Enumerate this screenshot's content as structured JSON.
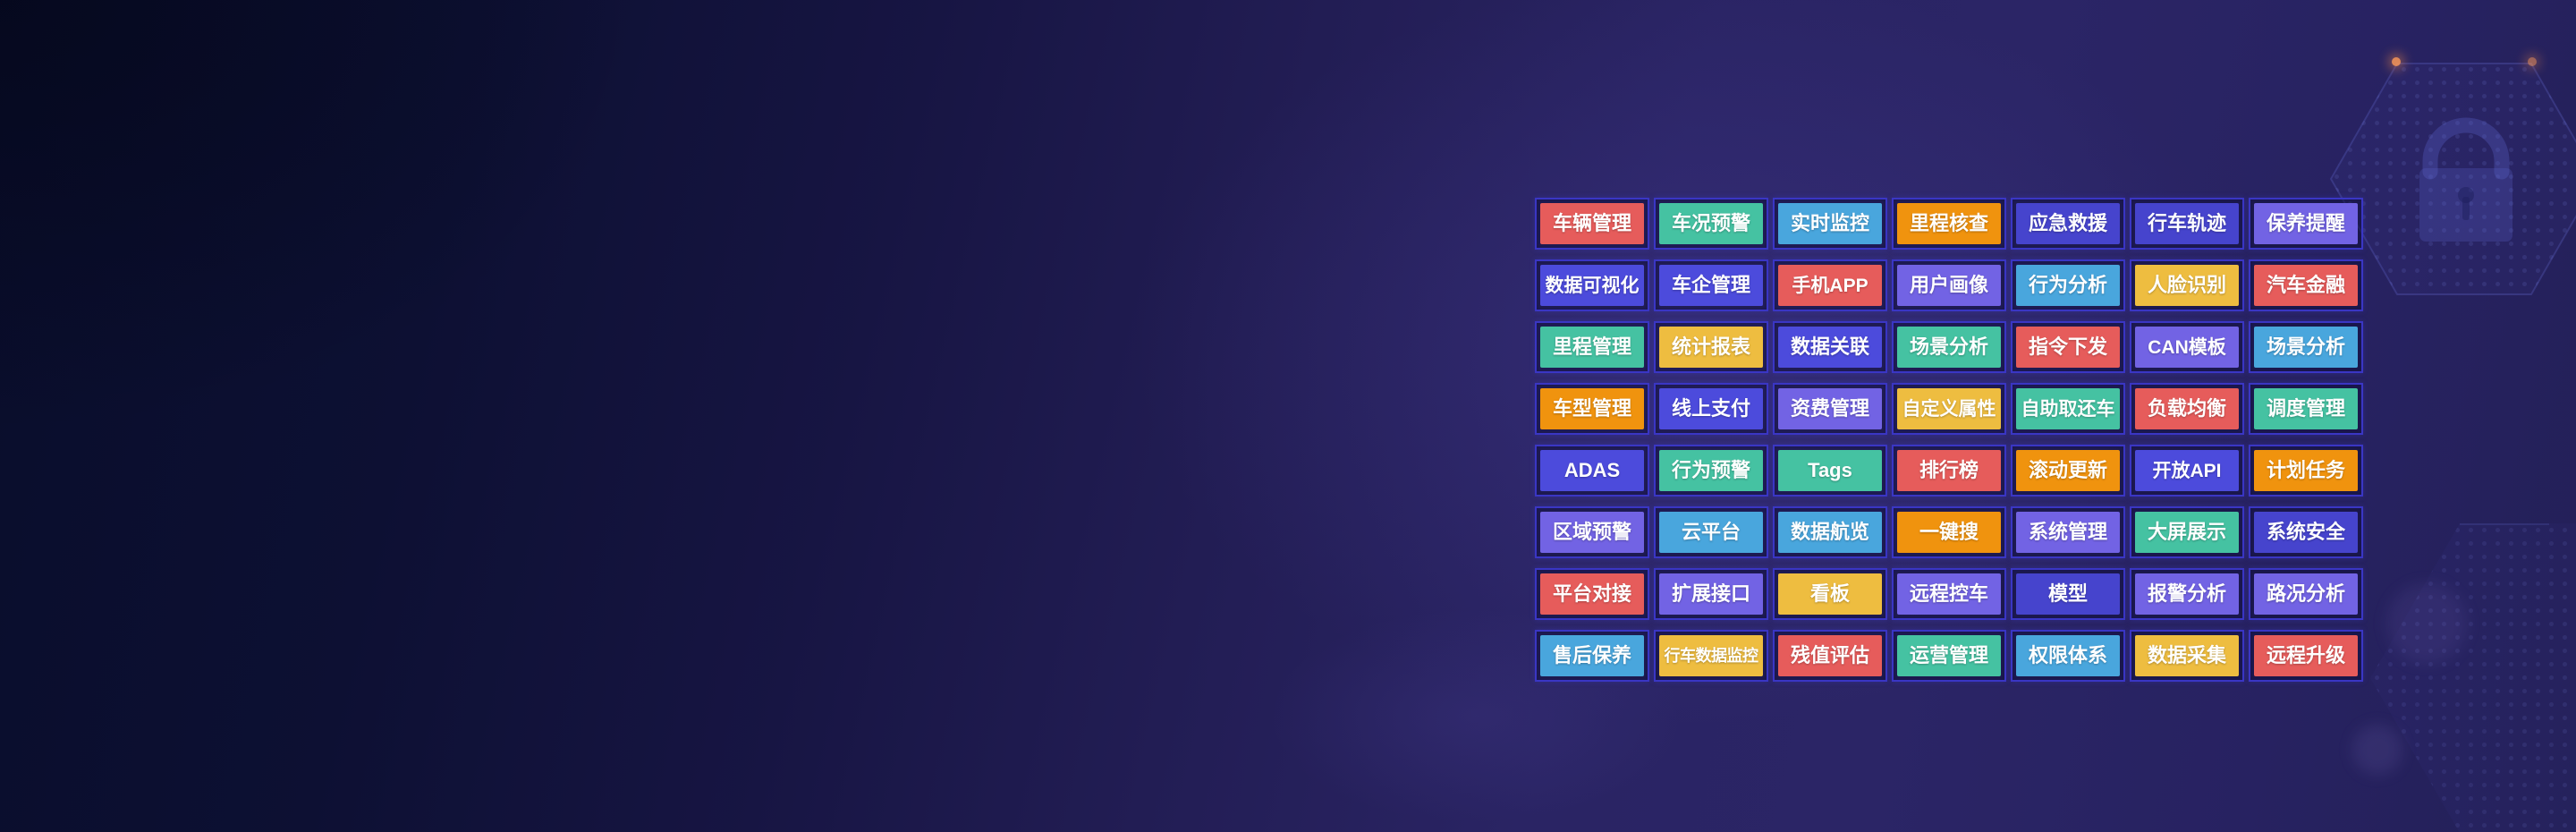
{
  "palette": {
    "red": "#e65c5b",
    "green": "#45c2a2",
    "blue": "#49a6dd",
    "orange": "#f0930e",
    "yellow": "#eebd40",
    "royal": "#4c4bdc",
    "indigo": "#4644cd",
    "purple": "#7263e4",
    "cell_border": "#3a36c4",
    "background_dark": "#090d2b",
    "background_purple": "#2b2566",
    "glow_dot": "#ff9a57"
  },
  "decor": {
    "icons": [
      "lock-icon",
      "hexagon-pattern",
      "hexagon-pattern"
    ]
  },
  "grid": {
    "rows": [
      [
        {
          "label": "车辆管理",
          "color": "red"
        },
        {
          "label": "车况预警",
          "color": "green"
        },
        {
          "label": "实时监控",
          "color": "blue"
        },
        {
          "label": "里程核查",
          "color": "orange"
        },
        {
          "label": "应急救援",
          "color": "indigo"
        },
        {
          "label": "行车轨迹",
          "color": "indigo"
        },
        {
          "label": "保养提醒",
          "color": "purple"
        }
      ],
      [
        {
          "label": "数据可视化",
          "color": "royal"
        },
        {
          "label": "车企管理",
          "color": "royal"
        },
        {
          "label": "手机APP",
          "color": "red"
        },
        {
          "label": "用户画像",
          "color": "purple"
        },
        {
          "label": "行为分析",
          "color": "blue"
        },
        {
          "label": "人脸识别",
          "color": "yellow"
        },
        {
          "label": "汽车金融",
          "color": "red"
        }
      ],
      [
        {
          "label": "里程管理",
          "color": "green"
        },
        {
          "label": "统计报表",
          "color": "yellow"
        },
        {
          "label": "数据关联",
          "color": "royal"
        },
        {
          "label": "场景分析",
          "color": "green"
        },
        {
          "label": "指令下发",
          "color": "red"
        },
        {
          "label": "CAN模板",
          "color": "purple"
        },
        {
          "label": "场景分析",
          "color": "blue"
        }
      ],
      [
        {
          "label": "车型管理",
          "color": "orange"
        },
        {
          "label": "线上支付",
          "color": "royal"
        },
        {
          "label": "资费管理",
          "color": "purple"
        },
        {
          "label": "自定义属性",
          "color": "yellow"
        },
        {
          "label": "自助取还车",
          "color": "green"
        },
        {
          "label": "负载均衡",
          "color": "red"
        },
        {
          "label": "调度管理",
          "color": "green"
        }
      ],
      [
        {
          "label": "ADAS",
          "color": "royal"
        },
        {
          "label": "行为预警",
          "color": "green"
        },
        {
          "label": "Tags",
          "color": "green"
        },
        {
          "label": "排行榜",
          "color": "red"
        },
        {
          "label": "滚动更新",
          "color": "orange"
        },
        {
          "label": "开放API",
          "color": "royal"
        },
        {
          "label": "计划任务",
          "color": "orange"
        }
      ],
      [
        {
          "label": "区域预警",
          "color": "purple"
        },
        {
          "label": "云平台",
          "color": "blue"
        },
        {
          "label": "数据航览",
          "color": "blue"
        },
        {
          "label": "一键搜",
          "color": "orange"
        },
        {
          "label": "系统管理",
          "color": "purple"
        },
        {
          "label": "大屏展示",
          "color": "green"
        },
        {
          "label": "系统安全",
          "color": "indigo"
        }
      ],
      [
        {
          "label": "平台对接",
          "color": "red"
        },
        {
          "label": "扩展接口",
          "color": "purple"
        },
        {
          "label": "看板",
          "color": "yellow"
        },
        {
          "label": "远程控车",
          "color": "purple"
        },
        {
          "label": "模型",
          "color": "indigo"
        },
        {
          "label": "报警分析",
          "color": "purple"
        },
        {
          "label": "路况分析",
          "color": "purple"
        }
      ],
      [
        {
          "label": "售后保养",
          "color": "blue"
        },
        {
          "label": "行车数据监控",
          "color": "yellow"
        },
        {
          "label": "残值评估",
          "color": "red"
        },
        {
          "label": "运营管理",
          "color": "green"
        },
        {
          "label": "权限体系",
          "color": "blue"
        },
        {
          "label": "数据采集",
          "color": "yellow"
        },
        {
          "label": "远程升级",
          "color": "red"
        }
      ]
    ]
  }
}
